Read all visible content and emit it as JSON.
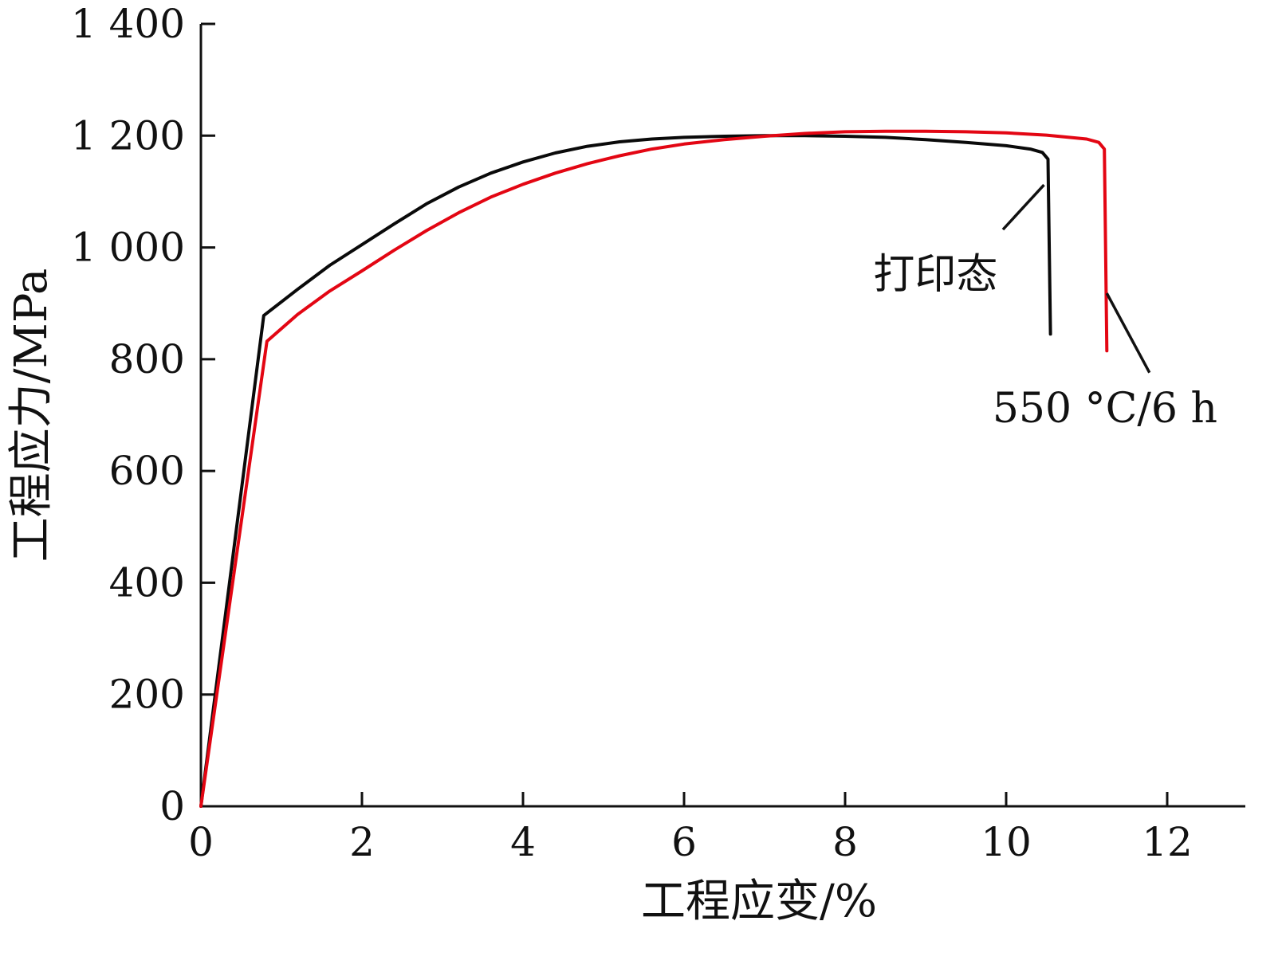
{
  "chart_data": {
    "type": "line",
    "title": "",
    "xlabel": "工程应变/%",
    "ylabel": "工程应力/MPa",
    "xlim": [
      0,
      13
    ],
    "ylim": [
      0,
      1400
    ],
    "grid": false,
    "legend_position": "none",
    "xticks": [
      0,
      2,
      4,
      6,
      8,
      10,
      12
    ],
    "xtick_labels": [
      "0",
      "2",
      "4",
      "6",
      "8",
      "10",
      "12"
    ],
    "yticks": [
      0,
      200,
      400,
      600,
      800,
      1000,
      1200,
      1400
    ],
    "ytick_labels": [
      "0",
      "200",
      "400",
      "600",
      "800",
      "1 000",
      "1 200",
      "1 400"
    ],
    "axis_color": "#111111",
    "series": [
      {
        "name": "打印态",
        "color": "#0a0a0a",
        "points": [
          [
            0,
            0
          ],
          [
            0.78,
            878
          ],
          [
            1.2,
            925
          ],
          [
            1.6,
            968
          ],
          [
            2.0,
            1005
          ],
          [
            2.4,
            1042
          ],
          [
            2.8,
            1078
          ],
          [
            3.2,
            1108
          ],
          [
            3.6,
            1133
          ],
          [
            4.0,
            1153
          ],
          [
            4.4,
            1169
          ],
          [
            4.8,
            1181
          ],
          [
            5.2,
            1189
          ],
          [
            5.6,
            1194
          ],
          [
            6.0,
            1197
          ],
          [
            6.5,
            1199
          ],
          [
            7.0,
            1200
          ],
          [
            7.5,
            1200
          ],
          [
            8.0,
            1199
          ],
          [
            8.5,
            1197
          ],
          [
            9.0,
            1193
          ],
          [
            9.5,
            1188
          ],
          [
            10.0,
            1182
          ],
          [
            10.3,
            1176
          ],
          [
            10.45,
            1170
          ],
          [
            10.52,
            1158
          ],
          [
            10.55,
            845
          ]
        ]
      },
      {
        "name": "550 °C/6 h",
        "color": "#e30613",
        "points": [
          [
            0,
            0
          ],
          [
            0.82,
            832
          ],
          [
            1.2,
            880
          ],
          [
            1.6,
            922
          ],
          [
            2.0,
            958
          ],
          [
            2.4,
            995
          ],
          [
            2.8,
            1030
          ],
          [
            3.2,
            1062
          ],
          [
            3.6,
            1090
          ],
          [
            4.0,
            1113
          ],
          [
            4.4,
            1133
          ],
          [
            4.8,
            1150
          ],
          [
            5.2,
            1164
          ],
          [
            5.6,
            1176
          ],
          [
            6.0,
            1185
          ],
          [
            6.5,
            1193
          ],
          [
            7.0,
            1199
          ],
          [
            7.5,
            1204
          ],
          [
            8.0,
            1207
          ],
          [
            8.5,
            1208
          ],
          [
            9.0,
            1208
          ],
          [
            9.5,
            1207
          ],
          [
            10.0,
            1205
          ],
          [
            10.5,
            1201
          ],
          [
            11.0,
            1194
          ],
          [
            11.15,
            1188
          ],
          [
            11.22,
            1176
          ],
          [
            11.25,
            815
          ]
        ]
      }
    ],
    "annotations": [
      {
        "text": "打印态",
        "x": 8.35,
        "y": 927,
        "leader": [
          [
            9.96,
            1032
          ],
          [
            10.47,
            1112
          ]
        ]
      },
      {
        "text": "550 °C/6 h",
        "x": 9.83,
        "y": 687,
        "leader": [
          [
            11.25,
            918
          ],
          [
            11.78,
            776
          ]
        ]
      }
    ]
  }
}
